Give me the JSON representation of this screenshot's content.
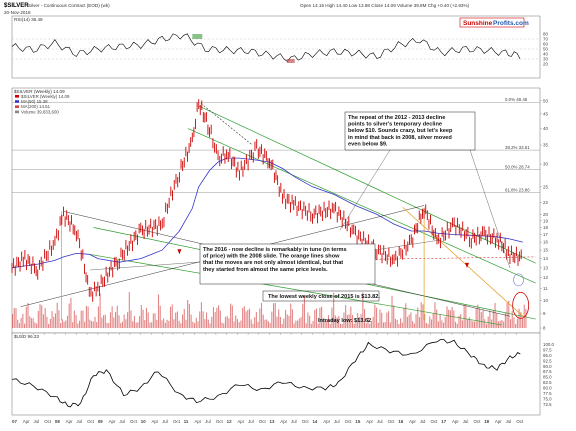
{
  "header": {
    "symbol": "$SILVER",
    "description": "Silver - Continuous Contract (EOD) (wk)",
    "date": "20-Nov-2018",
    "quote": "Open 14.15  High 14.40  Low 13.88  Close 14.09  Volume 39.8M  Chg +0.40 (+2.93%)",
    "logo_left": "Sunshine",
    "logo_right": "Profits.com"
  },
  "colors": {
    "price": "#cc0000",
    "ma": "#3333cc",
    "green_channel": "#2e9e2e",
    "rsi": "#000000",
    "usd_line": "#000000",
    "volume": "#cc2222",
    "annotation_box": "#ffffff",
    "red_text": "#cc0000",
    "orange_line": "#e39a1a"
  },
  "chart_data": [
    {
      "type": "line",
      "name": "rsi-panel",
      "title": "RSI(14) 36.49",
      "ylim": [
        0,
        100
      ],
      "ytick_labels": [
        "80",
        "70",
        "60",
        "50",
        "40",
        "30",
        "20"
      ],
      "x": [
        2007.0,
        2007.5,
        2008.0,
        2008.5,
        2009.0,
        2009.5,
        2010.0,
        2010.5,
        2011.0,
        2011.5,
        2012.0,
        2012.5,
        2013.0,
        2013.5,
        2014.0,
        2014.5,
        2015.0,
        2015.5,
        2016.0,
        2016.5,
        2017.0,
        2017.5,
        2018.0,
        2018.5,
        2018.9
      ],
      "series": [
        {
          "values": [
            55,
            48,
            62,
            40,
            50,
            55,
            58,
            70,
            78,
            50,
            48,
            46,
            38,
            30,
            40,
            45,
            42,
            35,
            58,
            68,
            42,
            50,
            48,
            42,
            36
          ]
        }
      ]
    },
    {
      "type": "line",
      "name": "price-panel",
      "title": "$SILVER (Weekly) 14.09",
      "ylabel": "",
      "ylim": [
        8,
        52
      ],
      "ytick_labels": [
        "50",
        "45",
        "40",
        "35",
        "30",
        "25",
        "22",
        "20",
        "19",
        "18",
        "17",
        "16",
        "15",
        "14",
        "13",
        "12",
        "11",
        "10",
        "9",
        "8"
      ],
      "xtick_labels": [
        "07",
        "Apr",
        "Jul",
        "Oct",
        "08",
        "Apr",
        "Jul",
        "Oct",
        "09",
        "Apr",
        "Jul",
        "Oct",
        "10",
        "Apr",
        "Jul",
        "Oct",
        "11",
        "Apr",
        "Jul",
        "Oct",
        "12",
        "Apr",
        "Jul",
        "Oct",
        "13",
        "Apr",
        "Jul",
        "Oct",
        "14",
        "Apr",
        "Jul",
        "Oct",
        "15",
        "Apr",
        "Jul",
        "Oct",
        "16",
        "Apr",
        "Jul",
        "Oct",
        "17",
        "Apr",
        "Jul",
        "Oct",
        "18",
        "Apr",
        "Jul",
        "Oct"
      ],
      "fib_labels": [
        "0.0% 49.45",
        "38.2% 33.61",
        "50.0% 28.74",
        "61.8% 23.86"
      ],
      "legend": [
        "$SILVER (Weekly) 14.09",
        "MA(50) 15.38",
        "MA(200) 14.51",
        "Volume 39,833,600"
      ],
      "x": [
        2007.0,
        2007.3,
        2007.6,
        2008.0,
        2008.2,
        2008.5,
        2008.8,
        2009.0,
        2009.5,
        2010.0,
        2010.5,
        2010.9,
        2011.2,
        2011.35,
        2011.6,
        2011.8,
        2012.0,
        2012.3,
        2012.7,
        2013.0,
        2013.3,
        2013.6,
        2014.0,
        2014.5,
        2015.0,
        2015.5,
        2015.9,
        2016.3,
        2016.6,
        2016.9,
        2017.3,
        2017.7,
        2018.0,
        2018.3,
        2018.6,
        2018.9
      ],
      "series": [
        {
          "name": "$SILVER",
          "values": [
            13.0,
            14.0,
            12.8,
            16.0,
            20.0,
            17.5,
            10.5,
            11.0,
            14.0,
            17.5,
            18.5,
            28.0,
            36.0,
            49.0,
            40.0,
            31.0,
            33.0,
            28.0,
            34.0,
            31.0,
            23.0,
            21.5,
            20.0,
            21.0,
            17.0,
            15.0,
            13.82,
            16.0,
            21.0,
            16.0,
            18.5,
            16.5,
            17.0,
            16.5,
            14.5,
            14.09
          ]
        },
        {
          "name": "MA",
          "values": [
            13.0,
            13.2,
            13.4,
            13.8,
            14.2,
            14.6,
            14.5,
            14.0,
            13.6,
            14.0,
            15.0,
            17.5,
            21.0,
            25.0,
            28.5,
            30.5,
            31.5,
            31.5,
            31.0,
            30.5,
            29.0,
            27.0,
            25.0,
            23.5,
            21.5,
            20.0,
            18.5,
            17.5,
            17.5,
            17.2,
            17.0,
            16.9,
            16.8,
            16.7,
            16.4,
            16.0
          ]
        }
      ],
      "annotations": [
        "The repeat of the 2012 - 2013 decline points to silver's temporary decline below $10. Sounds crazy, but let's keep in mind that back in 2008, silver moved even below $9.",
        "The 2016 - now decline is remarkably in tune (in terms of price) with the 2008 slide. The orange lines show that the moves are not only almost identical, but that they started from almost the same price levels.",
        "The lowest weekly close of 2015 is $13.82.",
        "Intraday low: $13.62"
      ]
    },
    {
      "type": "line",
      "name": "usd-panel",
      "title": "$USD 96.33",
      "ylim": [
        70,
        102
      ],
      "ytick_labels": [
        "102.5",
        "100.0",
        "97.5",
        "95.0",
        "92.5",
        "90.0",
        "87.5",
        "85.0",
        "82.5",
        "80.0",
        "77.5",
        "75.0",
        "72.5"
      ],
      "x": [
        2007.0,
        2007.5,
        2008.0,
        2008.3,
        2008.6,
        2008.9,
        2009.2,
        2009.6,
        2010.0,
        2010.4,
        2010.9,
        2011.3,
        2011.8,
        2012.3,
        2012.8,
        2013.3,
        2013.8,
        2014.3,
        2014.6,
        2015.0,
        2015.3,
        2015.8,
        2016.3,
        2016.9,
        2017.3,
        2017.7,
        2018.0,
        2018.3,
        2018.6,
        2018.9
      ],
      "series": [
        {
          "values": [
            84,
            81,
            76,
            72,
            73,
            86,
            88,
            77,
            80,
            88,
            77,
            74,
            76,
            82,
            79,
            83,
            80,
            80,
            82,
            93,
            100,
            97,
            95,
            102,
            101,
            95,
            90,
            89,
            94,
            96.33
          ]
        }
      ]
    }
  ],
  "axis_bottom": [
    "07",
    "Apr",
    "Jul",
    "Oct",
    "08",
    "Apr",
    "Jul",
    "Oct",
    "09",
    "Apr",
    "Jul",
    "Oct",
    "10",
    "Apr",
    "Jul",
    "Oct",
    "11",
    "Apr",
    "Jul",
    "Oct",
    "12",
    "Apr",
    "Jul",
    "Oct",
    "13",
    "Apr",
    "Jul",
    "Oct",
    "14",
    "Apr",
    "Jul",
    "Oct",
    "15",
    "Apr",
    "Jul",
    "Oct",
    "16",
    "Apr",
    "Jul",
    "Oct",
    "17",
    "Apr",
    "Jul",
    "Oct",
    "18",
    "Apr",
    "Jul",
    "Oct"
  ]
}
